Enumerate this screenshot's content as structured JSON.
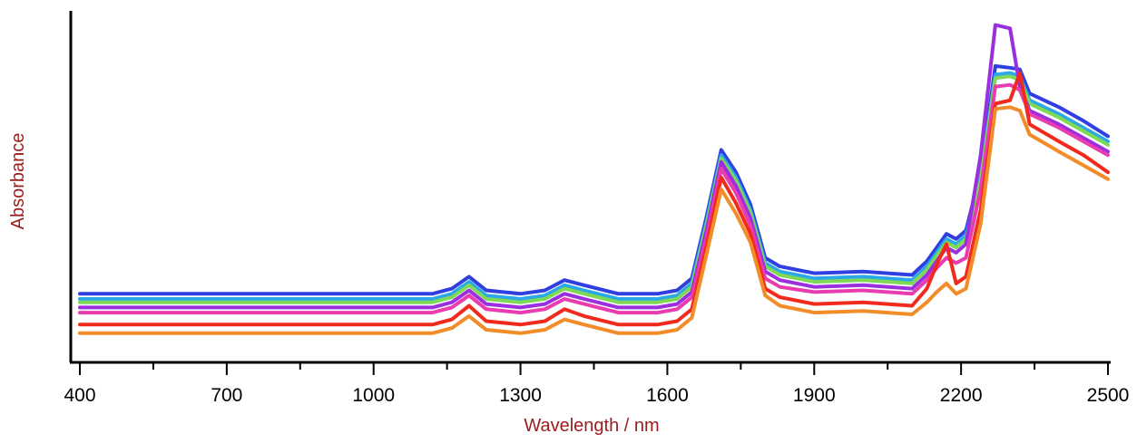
{
  "chart_data": {
    "type": "line",
    "title": "",
    "xlabel": "Wavelength / nm",
    "ylabel": "Absorbance",
    "xlim": [
      400,
      2500
    ],
    "ylim": [
      0,
      1
    ],
    "x_ticks": [
      400,
      700,
      1000,
      1300,
      1600,
      1900,
      2200,
      2500
    ],
    "x_minor_ticks": [
      550,
      850,
      1150,
      1450,
      1750,
      2050,
      2350
    ],
    "y_ticks": [],
    "grid": false,
    "legend": "none",
    "axis_title_color": "#9b1c1c",
    "x": [
      400,
      900,
      1120,
      1160,
      1195,
      1230,
      1300,
      1350,
      1390,
      1430,
      1500,
      1580,
      1620,
      1650,
      1680,
      1710,
      1740,
      1770,
      1800,
      1830,
      1900,
      2000,
      2100,
      2130,
      2150,
      2170,
      2190,
      2210,
      2240,
      2270,
      2300,
      2320,
      2340,
      2400,
      2450,
      2500
    ],
    "series": [
      {
        "color": "#2f3fe0",
        "values": [
          0.195,
          0.195,
          0.195,
          0.21,
          0.245,
          0.205,
          0.195,
          0.205,
          0.235,
          0.22,
          0.195,
          0.195,
          0.205,
          0.24,
          0.42,
          0.615,
          0.55,
          0.455,
          0.3,
          0.275,
          0.255,
          0.26,
          0.25,
          0.29,
          0.33,
          0.37,
          0.355,
          0.38,
          0.55,
          0.86,
          0.855,
          0.85,
          0.78,
          0.74,
          0.7,
          0.655
        ]
      },
      {
        "color": "#2aa8e8",
        "values": [
          0.18,
          0.18,
          0.18,
          0.195,
          0.23,
          0.19,
          0.18,
          0.19,
          0.22,
          0.205,
          0.18,
          0.18,
          0.19,
          0.225,
          0.405,
          0.6,
          0.535,
          0.44,
          0.285,
          0.26,
          0.24,
          0.245,
          0.235,
          0.275,
          0.315,
          0.355,
          0.34,
          0.365,
          0.535,
          0.835,
          0.84,
          0.83,
          0.76,
          0.72,
          0.68,
          0.64
        ]
      },
      {
        "color": "#7ed957",
        "values": [
          0.17,
          0.17,
          0.17,
          0.185,
          0.22,
          0.18,
          0.17,
          0.18,
          0.21,
          0.195,
          0.17,
          0.17,
          0.18,
          0.215,
          0.395,
          0.59,
          0.525,
          0.43,
          0.275,
          0.25,
          0.23,
          0.235,
          0.225,
          0.265,
          0.305,
          0.345,
          0.33,
          0.355,
          0.525,
          0.825,
          0.83,
          0.82,
          0.75,
          0.71,
          0.67,
          0.63
        ]
      },
      {
        "color": "#9b2fe0",
        "values": [
          0.155,
          0.155,
          0.155,
          0.17,
          0.205,
          0.165,
          0.155,
          0.165,
          0.195,
          0.18,
          0.155,
          0.155,
          0.165,
          0.2,
          0.38,
          0.58,
          0.51,
          0.415,
          0.26,
          0.235,
          0.215,
          0.22,
          0.21,
          0.25,
          0.29,
          0.33,
          0.315,
          0.34,
          0.6,
          0.98,
          0.97,
          0.8,
          0.73,
          0.69,
          0.65,
          0.61
        ]
      },
      {
        "color": "#e83cb0",
        "values": [
          0.14,
          0.14,
          0.14,
          0.155,
          0.19,
          0.15,
          0.14,
          0.15,
          0.18,
          0.165,
          0.14,
          0.14,
          0.15,
          0.185,
          0.36,
          0.56,
          0.49,
          0.395,
          0.24,
          0.215,
          0.2,
          0.205,
          0.195,
          0.235,
          0.27,
          0.3,
          0.285,
          0.3,
          0.5,
          0.8,
          0.805,
          0.79,
          0.72,
          0.68,
          0.64,
          0.6
        ]
      },
      {
        "color": "#f02b1d",
        "values": [
          0.105,
          0.105,
          0.105,
          0.12,
          0.16,
          0.115,
          0.105,
          0.115,
          0.15,
          0.13,
          0.105,
          0.105,
          0.115,
          0.15,
          0.335,
          0.535,
          0.46,
          0.37,
          0.21,
          0.185,
          0.165,
          0.17,
          0.16,
          0.21,
          0.28,
          0.34,
          0.225,
          0.245,
          0.44,
          0.75,
          0.76,
          0.84,
          0.69,
          0.64,
          0.6,
          0.55
        ]
      },
      {
        "color": "#f28c28",
        "values": [
          0.08,
          0.08,
          0.08,
          0.095,
          0.13,
          0.09,
          0.08,
          0.09,
          0.12,
          0.105,
          0.08,
          0.08,
          0.09,
          0.125,
          0.31,
          0.5,
          0.43,
          0.345,
          0.19,
          0.16,
          0.14,
          0.145,
          0.135,
          0.17,
          0.2,
          0.225,
          0.195,
          0.21,
          0.4,
          0.735,
          0.74,
          0.73,
          0.66,
          0.61,
          0.57,
          0.53
        ]
      }
    ]
  }
}
